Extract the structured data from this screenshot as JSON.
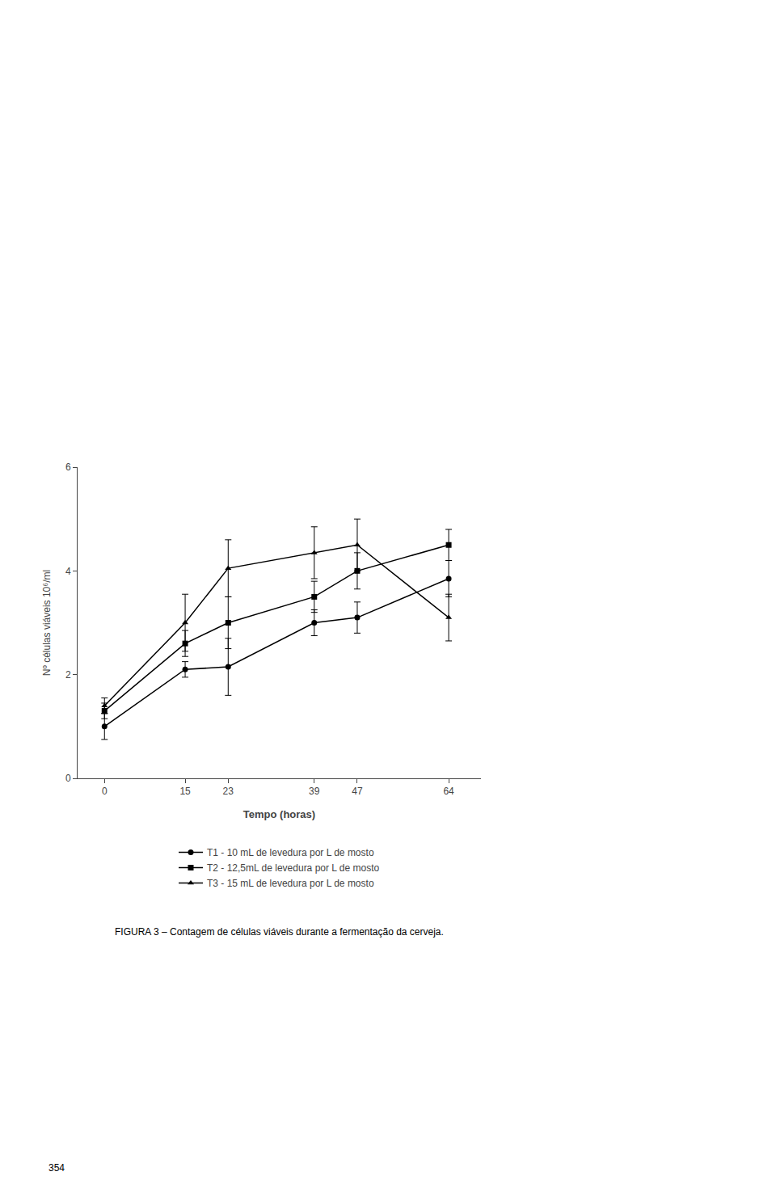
{
  "chart_data": {
    "type": "line",
    "x": [
      0,
      15,
      23,
      39,
      47,
      64
    ],
    "xlabel": "Tempo (horas)",
    "ylabel": "Nº células viáveis 10⁶/ml",
    "xlim": [
      -5,
      70
    ],
    "xticks": [
      0,
      15,
      23,
      39,
      47,
      64
    ],
    "ylim": [
      0,
      6
    ],
    "yticks": [
      0,
      2,
      4,
      6
    ],
    "grid": false,
    "legend": "bottom",
    "series": [
      {
        "name": "T1 - 10 mL de levedura por L de mosto",
        "color": "#000000",
        "marker": "circle",
        "values": [
          1.0,
          2.1,
          2.15,
          3.0,
          3.1,
          3.85
        ],
        "errors": [
          0.25,
          0.15,
          0.55,
          0.25,
          0.3,
          0.35
        ]
      },
      {
        "name": "T2 - 12,5mL de levedura por L de mosto",
        "color": "#000000",
        "marker": "square",
        "values": [
          1.3,
          2.6,
          3.0,
          3.5,
          4.0,
          4.5
        ],
        "errors": [
          0.15,
          0.25,
          0.5,
          0.3,
          0.35,
          0.3
        ]
      },
      {
        "name": "T3 - 15 mL de levedura por L de mosto",
        "color": "#000000",
        "marker": "triangle-up",
        "values": [
          1.4,
          3.0,
          4.05,
          4.35,
          4.5,
          3.1
        ],
        "errors": [
          0.15,
          0.55,
          0.55,
          0.5,
          0.5,
          0.45
        ]
      }
    ],
    "annotations": [
      "FIGURA 3 – Contagem de células viáveis durante a fermentação da cerveja.",
      "354"
    ]
  }
}
